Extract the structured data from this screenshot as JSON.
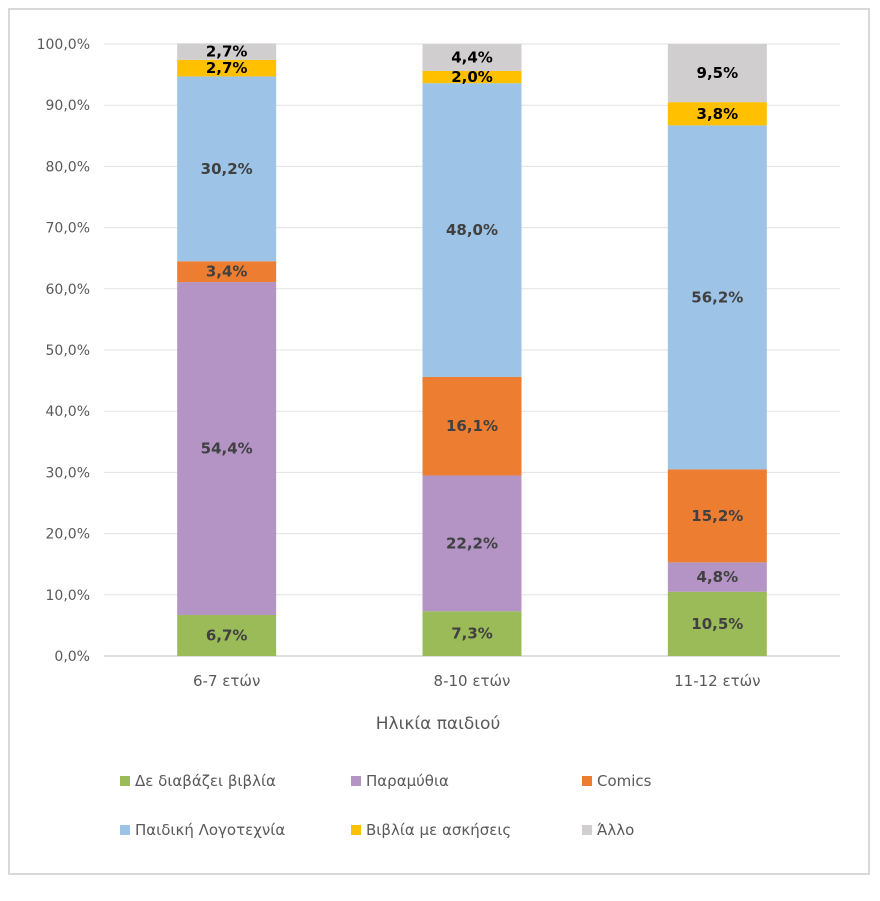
{
  "chart_data": {
    "type": "bar",
    "stacked": true,
    "title": "",
    "xlabel": "Ηλικία παιδιού",
    "ylabel": "",
    "ylim": [
      0,
      100
    ],
    "yticks": [
      "0,0%",
      "10,0%",
      "20,0%",
      "30,0%",
      "40,0%",
      "50,0%",
      "60,0%",
      "70,0%",
      "80,0%",
      "90,0%",
      "100,0%"
    ],
    "categories": [
      "6-7 ετών",
      "8-10 ετών",
      "11-12 ετών"
    ],
    "grid": true,
    "legend_position": "bottom",
    "series": [
      {
        "name": "Δε διαβάζει βιβλία",
        "color": "#9bbb59",
        "label_color": "#404040",
        "values": [
          6.7,
          7.3,
          10.5
        ],
        "labels": [
          "6,7%",
          "7,3%",
          "10,5%"
        ]
      },
      {
        "name": "Παραμύθια",
        "color": "#b394c5",
        "label_color": "#404040",
        "values": [
          54.4,
          22.2,
          4.8
        ],
        "labels": [
          "54,4%",
          "22,2%",
          "4,8%"
        ]
      },
      {
        "name": "Comics",
        "color": "#ed7d31",
        "label_color": "#404040",
        "values": [
          3.4,
          16.1,
          15.2
        ],
        "labels": [
          "3,4%",
          "16,1%",
          "15,2%"
        ]
      },
      {
        "name": "Παιδική Λογοτεχνία",
        "color": "#9dc3e6",
        "label_color": "#404040",
        "values": [
          30.2,
          48.0,
          56.2
        ],
        "labels": [
          "30,2%",
          "48,0%",
          "56,2%"
        ]
      },
      {
        "name": "Βιβλία με ασκήσεις",
        "color": "#ffc000",
        "label_color": "#000000",
        "values": [
          2.7,
          2.0,
          3.8
        ],
        "labels": [
          "2,7%",
          "2,0%",
          "3,8%"
        ]
      },
      {
        "name": "Άλλο",
        "color": "#d0cece",
        "label_color": "#000000",
        "values": [
          2.7,
          4.4,
          9.5
        ],
        "labels": [
          "2,7%",
          "4,4%",
          "9,5%"
        ]
      }
    ]
  }
}
